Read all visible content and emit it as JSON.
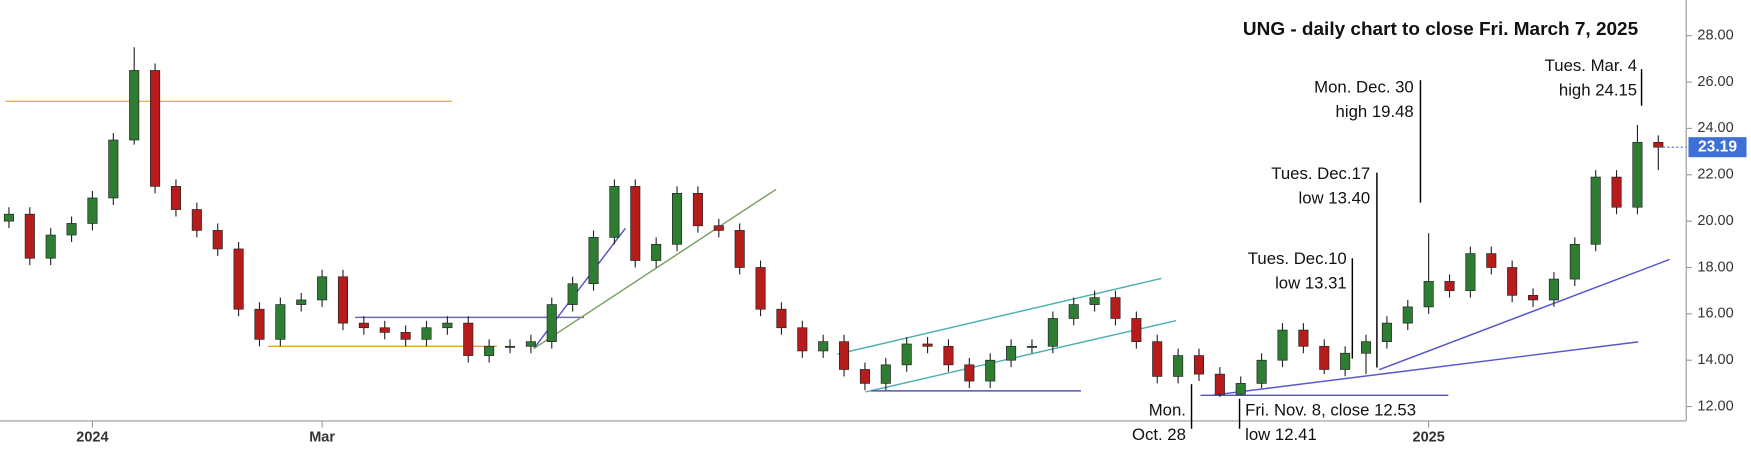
{
  "chart_data": {
    "type": "candlestick",
    "title": "UNG - daily chart to close Fri. March 7, 2025",
    "categories": [
      null,
      null,
      null,
      null,
      "2024",
      null,
      null,
      null,
      null,
      null,
      null,
      null,
      null,
      null,
      null,
      "Mar",
      null,
      null,
      null,
      null,
      null,
      null,
      null,
      null,
      null,
      null,
      null,
      null,
      null,
      null,
      null,
      null,
      null,
      null,
      null,
      null,
      null,
      null,
      null,
      null,
      null,
      null,
      null,
      null,
      null,
      null,
      null,
      null,
      null,
      null,
      null,
      null,
      null,
      null,
      null,
      null,
      null,
      null,
      null,
      null,
      null,
      null,
      null,
      null,
      null,
      null,
      null,
      null,
      "2025",
      null,
      null,
      null,
      null,
      null,
      null,
      null,
      null,
      null,
      null,
      null
    ],
    "open": [
      20.0,
      20.3,
      18.4,
      19.4,
      19.9,
      21,
      23.5,
      26.5,
      21.5,
      20.5,
      19.6,
      18.8,
      16.2,
      14.9,
      16.4,
      16.6,
      17.6,
      15.6,
      15.4,
      15.2,
      14.9,
      15.4,
      15.6,
      14.2,
      14.6,
      14.6,
      14.8,
      16.4,
      17.3,
      19.3,
      21.5,
      18.3,
      19,
      21.2,
      19.8,
      19.6,
      18,
      16.2,
      15.4,
      14.4,
      14.8,
      13.6,
      13,
      13.8,
      14.7,
      14.6,
      13.8,
      13.1,
      14,
      14.6,
      14.6,
      15.8,
      16.4,
      16.7,
      15.8,
      14.8,
      13.3,
      14.2,
      13.4,
      12.53,
      13,
      14,
      15.3,
      14.6,
      13.6,
      14.3,
      14.8,
      15.6,
      16.3,
      17.4,
      17,
      18.6,
      18,
      16.8,
      16.6,
      17.5,
      19,
      21.9,
      20.6,
      23.4
    ],
    "high": [
      20.6,
      20.6,
      19.7,
      20.2,
      21.3,
      23.8,
      27.5,
      26.8,
      21.8,
      20.8,
      19.9,
      19.1,
      16.5,
      16.7,
      16.9,
      17.9,
      17.9,
      15.9,
      15.7,
      15.5,
      15.7,
      15.9,
      15.9,
      14.9,
      14.9,
      15.1,
      16.7,
      17.6,
      19.6,
      21.8,
      21.8,
      19.3,
      21.5,
      21.5,
      20.1,
      19.9,
      18.3,
      16.5,
      15.7,
      15.1,
      15.1,
      13.9,
      14.1,
      15.0,
      15.0,
      14.9,
      14.1,
      14.3,
      14.9,
      14.9,
      16.1,
      16.7,
      17.0,
      17.0,
      16.1,
      15.1,
      14.5,
      14.5,
      13.7,
      13.3,
      14.3,
      15.6,
      15.6,
      14.9,
      14.6,
      15.1,
      15.9,
      16.6,
      19.48,
      17.7,
      18.9,
      18.9,
      18.3,
      17.1,
      17.8,
      19.3,
      22.2,
      22.2,
      24.15,
      23.7
    ],
    "low": [
      19.7,
      18.1,
      18.1,
      19.1,
      19.6,
      20.7,
      23.3,
      21.2,
      20.2,
      19.3,
      18.5,
      15.9,
      14.6,
      14.6,
      16.1,
      16.3,
      15.3,
      15.1,
      14.9,
      14.6,
      14.6,
      15.1,
      13.9,
      13.9,
      14.3,
      14.3,
      14.5,
      16.1,
      17.0,
      19.0,
      18.0,
      18.0,
      18.7,
      19.5,
      19.3,
      17.7,
      15.9,
      15.1,
      14.1,
      14.1,
      13.3,
      12.7,
      12.7,
      13.5,
      14.3,
      13.5,
      12.8,
      12.8,
      13.7,
      14.3,
      14.3,
      15.5,
      16.1,
      15.5,
      14.5,
      13.0,
      13.0,
      13.1,
      12.41,
      12.5,
      12.8,
      13.7,
      14.3,
      13.4,
      13.31,
      13.4,
      14.5,
      15.3,
      16.0,
      16.7,
      16.7,
      17.7,
      16.5,
      16.3,
      16.3,
      17.2,
      18.7,
      20.3,
      20.3,
      22.2
    ],
    "close": [
      20.3,
      18.4,
      19.4,
      19.9,
      21,
      23.5,
      26.5,
      21.5,
      20.5,
      19.6,
      18.8,
      16.2,
      14.9,
      16.4,
      16.6,
      17.6,
      15.6,
      15.4,
      15.2,
      14.9,
      15.4,
      15.6,
      14.2,
      14.6,
      14.6,
      14.8,
      16.4,
      17.3,
      19.3,
      21.5,
      18.3,
      19,
      21.2,
      19.8,
      19.6,
      18,
      16.2,
      15.4,
      14.4,
      14.8,
      13.6,
      13,
      13.8,
      14.7,
      14.6,
      13.8,
      13.1,
      14,
      14.6,
      14.6,
      15.8,
      16.4,
      16.7,
      15.8,
      14.8,
      13.3,
      14.2,
      13.4,
      12.53,
      13,
      14,
      15.3,
      14.6,
      13.6,
      14.3,
      14.8,
      15.6,
      16.3,
      17.4,
      17,
      18.6,
      18,
      16.8,
      16.6,
      17.5,
      19,
      21.9,
      20.6,
      23.4,
      23.19
    ],
    "up_color": "#2e7d32",
    "down_color": "#b71c1c",
    "last_price_color": "#3d6fd6",
    "ylim": [
      11.38,
      29.54
    ],
    "yticks": [
      {
        "value": 12,
        "label": "12.00"
      },
      {
        "value": 14,
        "label": "14.00"
      },
      {
        "value": 16,
        "label": "16.00"
      },
      {
        "value": 18,
        "label": "18.00"
      },
      {
        "value": 20,
        "label": "20.00"
      },
      {
        "value": 22,
        "label": "22.00"
      },
      {
        "value": 24,
        "label": "24.00"
      },
      {
        "value": 26,
        "label": "26.00"
      },
      {
        "value": 28,
        "label": "28.00"
      }
    ],
    "annotations": [
      "Tues. Mar. 4",
      "high 24.15",
      "Mon. Dec. 30",
      "high 19.48",
      "Tues. Dec.17",
      "low 13.40",
      "Tues. Dec.10",
      "low 13.31",
      "Mon.",
      "Oct. 28",
      "Fri. Nov. 8, close 12.53",
      "low 12.41"
    ]
  }
}
